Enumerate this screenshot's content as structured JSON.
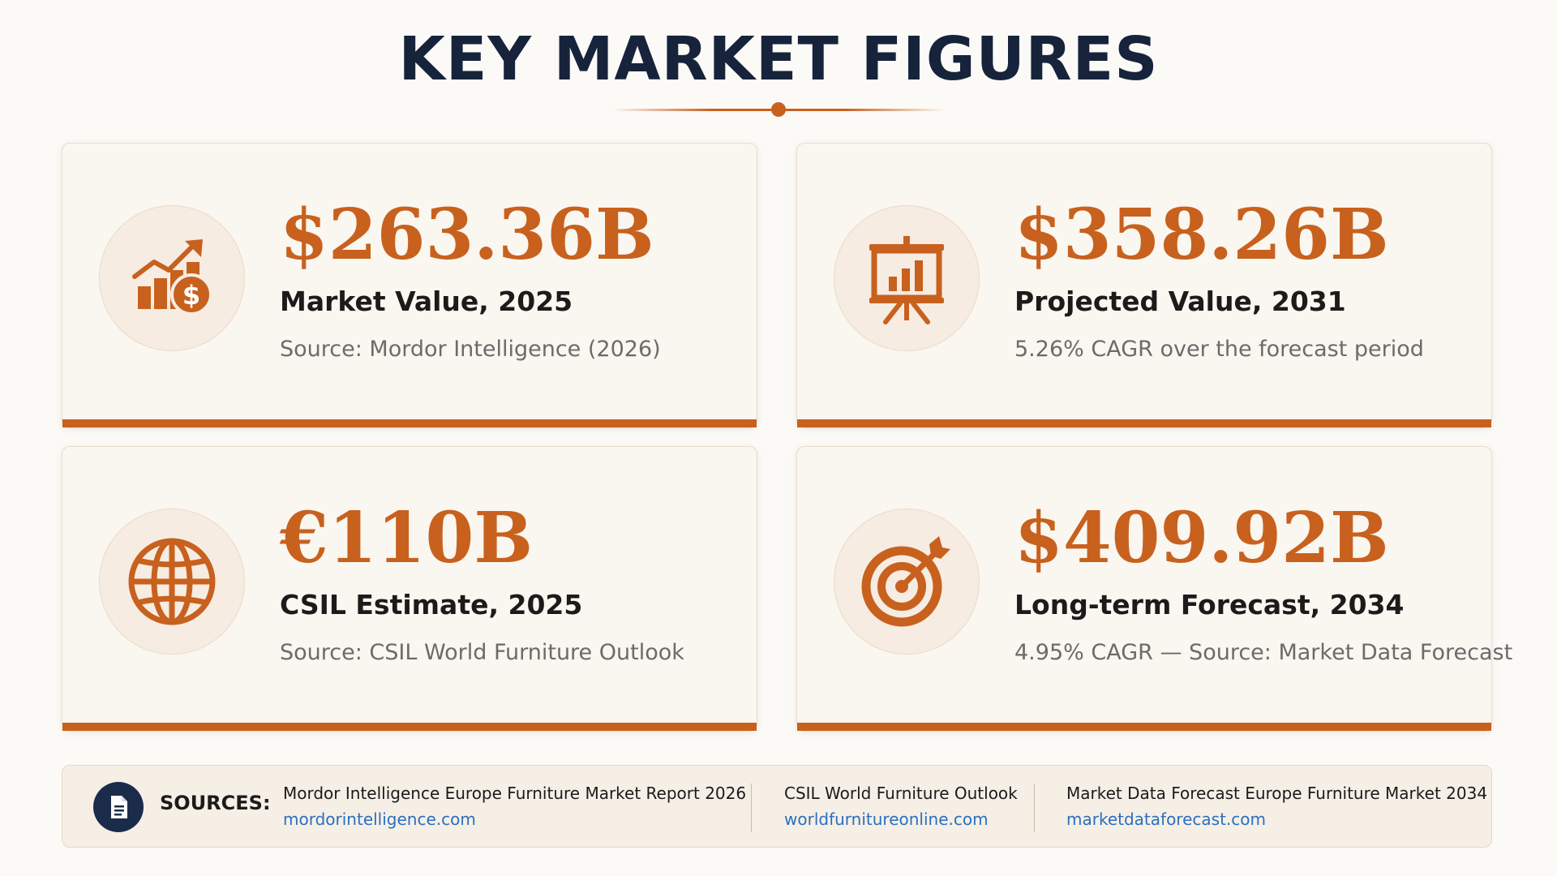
{
  "title": "KEY MARKET FIGURES",
  "colors": {
    "accent": "#c8611e",
    "title": "#16233b",
    "link": "#2c6fbf",
    "card_bg": "#faf6f0"
  },
  "cards": [
    {
      "icon": "chart-growth-dollar-icon",
      "value": "$263.36B",
      "label": "Market Value, 2025",
      "sub": "Source: Mordor Intelligence (2026)"
    },
    {
      "icon": "presentation-board-icon",
      "value": "$358.26B",
      "label": "Projected Value, 2031",
      "sub": "5.26% CAGR over the forecast period"
    },
    {
      "icon": "globe-icon",
      "value": "€110B",
      "label": "CSIL Estimate, 2025",
      "sub": "Source: CSIL World Furniture Outlook"
    },
    {
      "icon": "target-icon",
      "value": "$409.92B",
      "label": "Long-term Forecast, 2034",
      "sub": "4.95% CAGR — Source: Market Data Forecast"
    }
  ],
  "sources": {
    "icon": "document-icon",
    "label": "SOURCES:",
    "items": [
      {
        "name": "Mordor Intelligence Europe Furniture Market Report 2026",
        "link": "mordorintelligence.com"
      },
      {
        "name": "CSIL World Furniture Outlook",
        "link": "worldfurnitureonline.com"
      },
      {
        "name": "Market Data Forecast Europe Furniture Market 2034",
        "link": "marketdataforecast.com"
      }
    ]
  }
}
